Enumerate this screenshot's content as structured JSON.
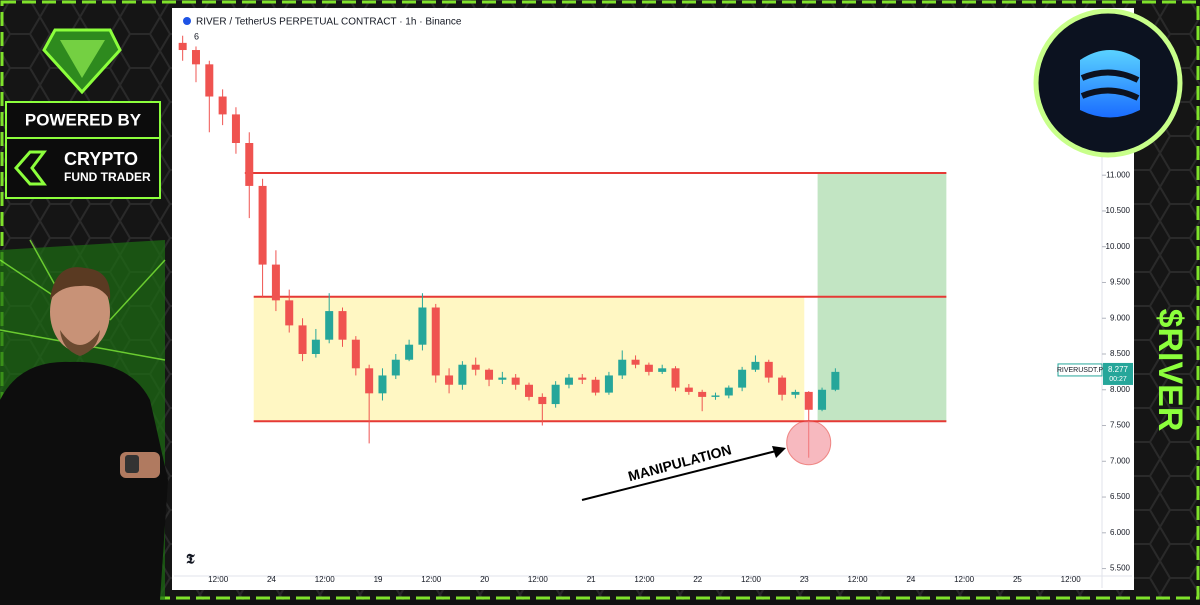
{
  "branding": {
    "powered_by": "POWERED BY",
    "brand_line1": "CRYPTO",
    "brand_line2": "FUND TRADER",
    "ticker_tag": "$RIVER"
  },
  "chart_data": {
    "type": "candlestick",
    "title": "RIVER / TetherUS PERPETUAL CONTRACT · 1h · Binance",
    "indicator": "6",
    "annotation": "MANIPULATION",
    "symbol_label": "RIVERUSDT.P",
    "last_price": 8.277,
    "countdown": "00:27",
    "up_color": "#26a69a",
    "down_color": "#ef5350",
    "x": [
      4,
      7,
      10,
      13,
      16,
      19,
      22,
      25,
      28,
      31,
      34,
      37,
      40,
      43,
      46,
      49,
      52,
      55,
      58,
      61,
      64,
      67,
      70,
      73,
      76,
      79,
      82,
      85,
      88,
      91,
      94,
      97,
      100,
      103,
      106,
      109,
      112,
      115,
      118,
      121,
      124,
      127,
      130,
      133,
      136,
      139,
      142,
      145,
      148,
      151
    ],
    "open": [
      12.85,
      12.75,
      12.55,
      12.1,
      11.85,
      11.45,
      10.85,
      9.75,
      9.25,
      8.9,
      8.5,
      8.7,
      9.1,
      8.7,
      8.3,
      7.95,
      8.2,
      8.42,
      8.63,
      9.15,
      8.2,
      8.07,
      8.35,
      8.28,
      8.14,
      8.17,
      8.07,
      7.9,
      7.8,
      8.07,
      8.17,
      8.14,
      7.96,
      8.2,
      8.42,
      8.35,
      8.25,
      8.3,
      8.03,
      7.97,
      7.9,
      7.92,
      8.03,
      8.28,
      8.39,
      8.17,
      7.93,
      7.97,
      7.72,
      8.0
    ],
    "high": [
      12.95,
      12.8,
      12.6,
      12.2,
      11.95,
      11.6,
      10.95,
      9.95,
      9.4,
      9.0,
      8.85,
      9.35,
      9.15,
      8.75,
      8.35,
      8.3,
      8.5,
      8.7,
      9.35,
      9.2,
      8.3,
      8.4,
      8.45,
      8.3,
      8.25,
      8.22,
      8.1,
      7.95,
      8.12,
      8.22,
      8.22,
      8.18,
      8.25,
      8.55,
      8.48,
      8.38,
      8.35,
      8.33,
      8.08,
      8.0,
      7.96,
      8.06,
      8.32,
      8.48,
      8.42,
      8.2,
      8.0,
      7.98,
      8.03,
      8.3
    ],
    "low": [
      12.6,
      12.3,
      11.6,
      11.7,
      11.3,
      10.4,
      9.3,
      9.1,
      8.8,
      8.4,
      8.45,
      8.65,
      8.6,
      8.2,
      7.25,
      7.85,
      8.15,
      8.4,
      8.55,
      8.1,
      7.95,
      8.0,
      8.2,
      8.05,
      8.08,
      8.0,
      7.85,
      7.5,
      7.75,
      8.02,
      8.08,
      7.92,
      7.93,
      8.15,
      8.3,
      8.2,
      8.22,
      7.98,
      7.93,
      7.7,
      7.86,
      7.88,
      7.98,
      8.25,
      8.1,
      7.85,
      7.88,
      7.05,
      7.7,
      7.98
    ],
    "close": [
      12.75,
      12.55,
      12.1,
      11.85,
      11.45,
      10.85,
      9.75,
      9.25,
      8.9,
      8.5,
      8.7,
      9.1,
      8.7,
      8.3,
      7.95,
      8.2,
      8.42,
      8.63,
      9.15,
      8.2,
      8.07,
      8.35,
      8.28,
      8.14,
      8.17,
      8.07,
      7.9,
      7.8,
      8.07,
      8.17,
      8.14,
      7.96,
      8.2,
      8.42,
      8.35,
      8.25,
      8.3,
      8.03,
      7.97,
      7.9,
      7.92,
      8.03,
      8.28,
      8.39,
      8.17,
      7.93,
      7.97,
      7.72,
      8.0,
      8.25
    ],
    "range_box": {
      "x": [
        20,
        144
      ],
      "y": [
        7.56,
        9.3
      ]
    },
    "target_box": {
      "x": [
        147,
        176
      ],
      "y": [
        7.56,
        11.03
      ]
    },
    "levels": [
      11.03,
      9.3,
      7.56
    ],
    "xlim": [
      3.4,
      210.6
    ],
    "ylim": [
      5.41,
      13.03
    ],
    "xticks": [
      {
        "value": 12,
        "label": "12:00"
      },
      24,
      {
        "value": 36,
        "label": "12:00"
      },
      {
        "value": 48,
        "label": "19"
      },
      {
        "value": 60,
        "label": "12:00"
      },
      {
        "value": 72,
        "label": "20"
      },
      {
        "value": 84,
        "label": "12:00"
      },
      {
        "value": 96,
        "label": "21"
      },
      {
        "value": 108,
        "label": "12:00"
      },
      {
        "value": 120,
        "label": "22"
      },
      {
        "value": 132,
        "label": "12:00"
      },
      {
        "value": 144,
        "label": "23"
      },
      {
        "value": 156,
        "label": "12:00"
      },
      {
        "value": 168,
        "label": "24"
      },
      {
        "value": 180,
        "label": "12:00"
      },
      {
        "value": 192,
        "label": "25"
      },
      {
        "value": 204,
        "label": "12:00"
      }
    ],
    "yticks": [
      {
        "value": 5.5,
        "label": "5.500"
      },
      {
        "value": 6,
        "label": "6.000"
      },
      {
        "value": 6.5,
        "label": "6.500"
      },
      {
        "value": 7,
        "label": "7.000"
      },
      {
        "value": 7.5,
        "label": "7.500"
      },
      {
        "value": 8,
        "label": "8.000"
      },
      {
        "value": 8.5,
        "label": "8.500"
      },
      {
        "value": 9,
        "label": "9.000"
      },
      {
        "value": 9.5,
        "label": "9.500"
      },
      {
        "value": 10,
        "label": "10.000"
      },
      {
        "value": 10.5,
        "label": "10.500"
      },
      {
        "value": 11,
        "label": "11.000"
      }
    ]
  }
}
